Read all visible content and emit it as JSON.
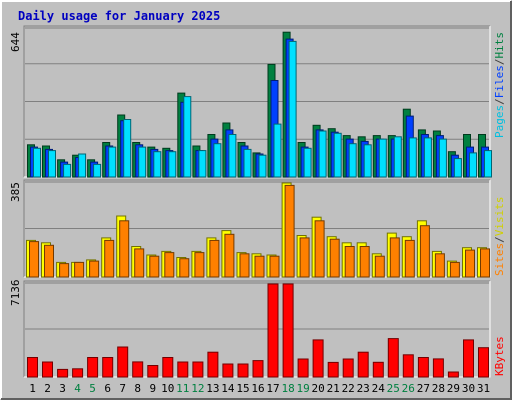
{
  "chart_data": [
    {
      "type": "bar",
      "title": "Daily usage for January 2025",
      "panel": "hits-files-pages",
      "ymax_label": "644",
      "ylim": [
        0,
        644
      ],
      "right_label_parts": [
        "Pages",
        "Files",
        "Hits"
      ],
      "categories": [
        "1",
        "2",
        "3",
        "4",
        "5",
        "6",
        "7",
        "8",
        "9",
        "10",
        "11",
        "12",
        "13",
        "14",
        "15",
        "16",
        "17",
        "18",
        "19",
        "20",
        "21",
        "22",
        "23",
        "24",
        "25",
        "26",
        "27",
        "28",
        "29",
        "30",
        "31"
      ],
      "series": [
        {
          "name": "Hits",
          "color": "#008040",
          "values": [
            140,
            135,
            75,
            95,
            75,
            150,
            270,
            150,
            130,
            125,
            365,
            135,
            185,
            235,
            150,
            105,
            490,
            630,
            150,
            225,
            210,
            180,
            175,
            180,
            180,
            295,
            205,
            200,
            110,
            185,
            185
          ]
        },
        {
          "name": "Files",
          "color": "#0040ff",
          "values": [
            130,
            120,
            65,
            85,
            65,
            135,
            245,
            140,
            120,
            115,
            325,
            115,
            165,
            205,
            135,
            100,
            420,
            600,
            130,
            205,
            195,
            165,
            155,
            165,
            165,
            265,
            185,
            180,
            95,
            130,
            130
          ]
        },
        {
          "name": "Pages",
          "color": "#00e0ff",
          "values": [
            125,
            115,
            55,
            100,
            55,
            130,
            250,
            130,
            110,
            110,
            350,
            115,
            145,
            185,
            120,
            95,
            230,
            590,
            125,
            200,
            190,
            145,
            140,
            165,
            175,
            170,
            170,
            165,
            80,
            105,
            115
          ]
        }
      ]
    },
    {
      "type": "bar",
      "panel": "visits-sites",
      "ymax_label": "385",
      "ylim": [
        0,
        385
      ],
      "right_label_parts": [
        "Sites",
        "Visits"
      ],
      "categories": [
        "1",
        "2",
        "3",
        "4",
        "5",
        "6",
        "7",
        "8",
        "9",
        "10",
        "11",
        "12",
        "13",
        "14",
        "15",
        "16",
        "17",
        "18",
        "19",
        "20",
        "21",
        "22",
        "23",
        "24",
        "25",
        "26",
        "27",
        "28",
        "29",
        "30",
        "31"
      ],
      "series": [
        {
          "name": "Visits",
          "color": "#ffff00",
          "values": [
            150,
            140,
            60,
            60,
            70,
            160,
            250,
            125,
            90,
            105,
            80,
            105,
            160,
            190,
            100,
            95,
            90,
            385,
            170,
            245,
            165,
            140,
            140,
            95,
            180,
            165,
            230,
            105,
            65,
            120,
            120
          ]
        },
        {
          "name": "Sites",
          "color": "#ff8000",
          "values": [
            145,
            130,
            55,
            60,
            65,
            150,
            230,
            115,
            85,
            100,
            75,
            100,
            150,
            175,
            95,
            85,
            85,
            375,
            160,
            230,
            155,
            125,
            125,
            85,
            160,
            150,
            210,
            95,
            60,
            110,
            115
          ]
        }
      ]
    },
    {
      "type": "bar",
      "panel": "kbytes",
      "ymax_label": "7136",
      "ylim": [
        0,
        7136
      ],
      "right_label_parts": [
        "KBytes"
      ],
      "categories": [
        "1",
        "2",
        "3",
        "4",
        "5",
        "6",
        "7",
        "8",
        "9",
        "10",
        "11",
        "12",
        "13",
        "14",
        "15",
        "16",
        "17",
        "18",
        "19",
        "20",
        "21",
        "22",
        "23",
        "24",
        "25",
        "26",
        "27",
        "28",
        "29",
        "30",
        "31"
      ],
      "weekend_days": [
        "4",
        "5",
        "11",
        "12",
        "18",
        "19",
        "25",
        "26"
      ],
      "series": [
        {
          "name": "KBytes",
          "color": "#ff0000",
          "values": [
            1500,
            1150,
            580,
            630,
            1500,
            1500,
            2300,
            1160,
            880,
            1500,
            1150,
            1150,
            1900,
            1000,
            1000,
            1260,
            7136,
            7136,
            1380,
            2850,
            1120,
            1380,
            1900,
            1130,
            2950,
            1700,
            1500,
            1390,
            380,
            2850,
            2250
          ]
        }
      ]
    }
  ]
}
